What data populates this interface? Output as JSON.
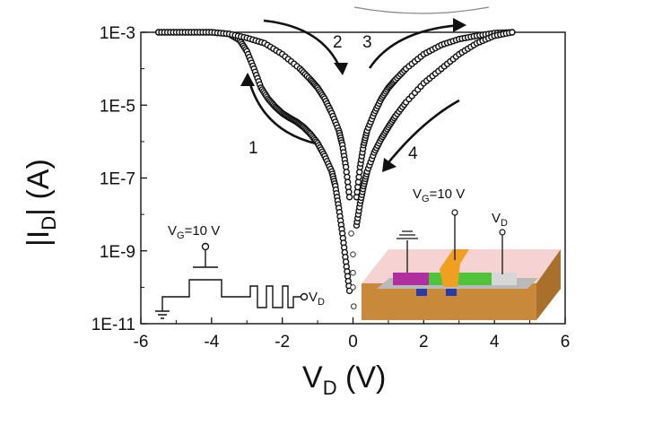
{
  "chart_data": {
    "type": "scatter",
    "xlabel": "V",
    "xlabel_sub": "D",
    "xlabel_unit": " (V)",
    "ylabel": "|I",
    "ylabel_sub": "D",
    "ylabel_unit": "| (A)",
    "xlim": [
      -6,
      6
    ],
    "ylim": [
      1e-11,
      0.001
    ],
    "yscale": "log",
    "x_ticks": [
      "-6",
      "-4",
      "-2",
      "0",
      "2",
      "4",
      "6"
    ],
    "y_ticks": [
      "1E-11",
      "1E-9",
      "1E-7",
      "1E-5",
      "1E-3"
    ],
    "grid": false,
    "series": [
      {
        "sweep": "1-2",
        "x": [
          -5.5,
          -5.0,
          -4.5,
          -4.0,
          -3.5,
          -3.2,
          -3.0,
          -2.8,
          -2.6,
          -2.4,
          -2.2,
          -2.0,
          -1.8,
          -1.6,
          -1.4,
          -1.2,
          -1.0,
          -0.8,
          -0.6,
          -0.5,
          -0.4,
          -0.3,
          -0.2,
          -0.1
        ],
        "y": [
          0.001,
          0.001,
          0.001,
          0.001,
          0.0009,
          0.0006,
          0.0003,
          0.0001,
          3e-05,
          1.5e-05,
          9e-06,
          6e-06,
          4.5e-06,
          3.5e-06,
          2.5e-06,
          1.6e-06,
          9e-07,
          4e-07,
          1.5e-07,
          6e-08,
          1.5e-08,
          3e-09,
          5e-10,
          8e-11
        ]
      },
      {
        "sweep": "2-3",
        "x": [
          -5.5,
          -5.0,
          -4.5,
          -4.0,
          -3.5,
          -3.0,
          -2.5,
          -2.0,
          -1.5,
          -1.2,
          -1.0,
          -0.8,
          -0.6,
          -0.4,
          -0.3,
          -0.2,
          -0.1
        ],
        "y": [
          0.001,
          0.001,
          0.001,
          0.001,
          0.0009,
          0.0007,
          0.0005,
          0.00025,
          0.0001,
          5e-05,
          3e-05,
          1.5e-05,
          6e-06,
          2e-06,
          8e-07,
          2e-07,
          3e-08
        ]
      },
      {
        "sweep": "3-4",
        "x": [
          0.1,
          0.2,
          0.3,
          0.4,
          0.6,
          0.8,
          1.0,
          1.2,
          1.5,
          2.0,
          2.5,
          3.0,
          3.5,
          4.0,
          4.5
        ],
        "y": [
          3e-08,
          2e-07,
          8e-07,
          2e-06,
          6e-06,
          1.5e-05,
          3e-05,
          5e-05,
          0.0001,
          0.00025,
          0.00045,
          0.00065,
          0.0008,
          0.00095,
          0.001
        ]
      },
      {
        "sweep": "4",
        "x": [
          0.1,
          0.2,
          0.3,
          0.4,
          0.6,
          0.8,
          1.0,
          1.2,
          1.5,
          2.0,
          2.5,
          3.0,
          3.5,
          4.0,
          4.5
        ],
        "y": [
          5e-09,
          2e-08,
          6e-08,
          1.5e-07,
          5e-07,
          1.2e-06,
          2.5e-06,
          5e-06,
          1.2e-05,
          4e-05,
          0.0001,
          0.00025,
          0.0005,
          0.0008,
          0.001
        ]
      },
      {
        "sweep": "open-points",
        "x": [
          -0.05,
          0.0,
          0.0,
          0.0,
          0.02
        ],
        "y": [
          3e-09,
          8e-10,
          2.5e-10,
          1e-10,
          3e-11
        ]
      }
    ],
    "annotations": [
      "1",
      "2",
      "3",
      "4"
    ],
    "insets": {
      "circuit": {
        "gate_label": "V",
        "gate_sub": "G",
        "gate_value": "=10 V",
        "drain_label": "V",
        "drain_sub": "D"
      },
      "device": {
        "gate_label": "V",
        "gate_sub": "G",
        "gate_value": "=10 V",
        "drain_label": "V",
        "drain_sub": "D"
      }
    }
  }
}
